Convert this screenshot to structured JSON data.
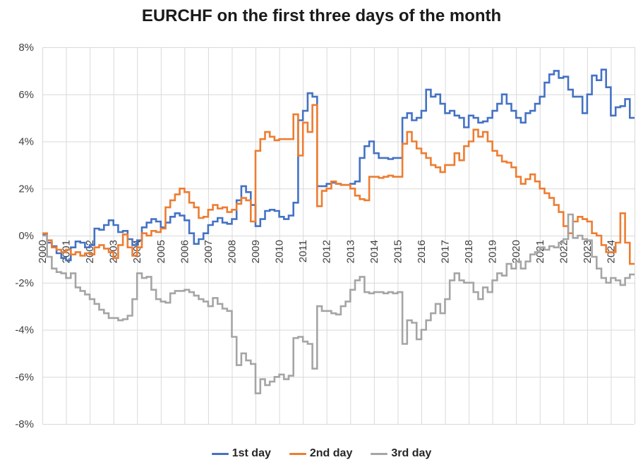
{
  "title": "EURCHF on the first three days of the month",
  "chart_data": {
    "type": "line",
    "title": "EURCHF on the first three days of the month",
    "grid": true,
    "grid_color": "#d9d9d9",
    "tick_label_color": "#404040",
    "background": "#ffffff",
    "y_axis": {
      "unit": "%",
      "min": -8,
      "max": 8,
      "ticks": [
        {
          "value": 8,
          "label": "8%"
        },
        {
          "value": 6,
          "label": "6%"
        },
        {
          "value": 4,
          "label": "4%"
        },
        {
          "value": 2,
          "label": "2%"
        },
        {
          "value": 0,
          "label": "0%"
        },
        {
          "value": -2,
          "label": "-2%"
        },
        {
          "value": -4,
          "label": "-4%"
        },
        {
          "value": -6,
          "label": "-6%"
        },
        {
          "value": -8,
          "label": "-8%"
        }
      ]
    },
    "x_axis": {
      "min": 2000,
      "max": 2025,
      "tick_rotation_deg": -90,
      "years": [
        2000,
        2001,
        2002,
        2003,
        2004,
        2005,
        2006,
        2007,
        2008,
        2009,
        2010,
        2011,
        2012,
        2013,
        2014,
        2015,
        2016,
        2017,
        2018,
        2019,
        2020,
        2021,
        2022,
        2023,
        2024
      ]
    },
    "legend": {
      "position": "bottom",
      "entries": [
        {
          "label": "1st day",
          "color": "#4472C4"
        },
        {
          "label": "2nd day",
          "color": "#ED7D31"
        },
        {
          "label": "3rd day",
          "color": "#A5A5A5"
        }
      ]
    },
    "x_start": 2000.0,
    "x_step": 0.2,
    "series": [
      {
        "name": "1st day",
        "color": "#4472C4",
        "values": [
          0.05,
          -0.3,
          -0.45,
          -0.75,
          -0.95,
          -1.05,
          -0.5,
          -0.25,
          -0.3,
          -0.5,
          -0.4,
          0.3,
          0.25,
          0.45,
          0.65,
          0.45,
          0.15,
          0.2,
          -0.15,
          -0.4,
          -0.2,
          0.35,
          0.55,
          0.7,
          0.6,
          0.35,
          0.55,
          0.8,
          0.95,
          0.85,
          0.65,
          0.1,
          -0.35,
          -0.15,
          0.1,
          0.45,
          0.6,
          0.75,
          0.55,
          0.5,
          0.7,
          1.5,
          2.1,
          1.85,
          1.3,
          0.4,
          0.7,
          1.05,
          1.1,
          1.05,
          0.8,
          0.7,
          0.85,
          1.4,
          4.9,
          5.3,
          6.05,
          5.9,
          2.1,
          2.1,
          2.2,
          2.25,
          2.2,
          2.15,
          2.15,
          2.2,
          2.3,
          3.3,
          3.8,
          4.0,
          3.5,
          3.3,
          3.3,
          3.25,
          3.3,
          3.3,
          5.0,
          5.2,
          4.9,
          5.0,
          5.3,
          6.2,
          5.9,
          6.0,
          5.6,
          5.2,
          5.3,
          5.1,
          5.0,
          4.6,
          5.1,
          5.0,
          4.8,
          4.85,
          5.0,
          5.3,
          5.6,
          6.0,
          5.6,
          5.3,
          5.0,
          4.8,
          5.2,
          5.3,
          5.6,
          5.9,
          6.5,
          6.85,
          7.0,
          6.7,
          6.75,
          6.2,
          5.9,
          5.9,
          5.2,
          6.0,
          6.8,
          6.6,
          7.05,
          6.3,
          5.1,
          5.45,
          5.5,
          5.8,
          5.0
        ]
      },
      {
        "name": "2nd day",
        "color": "#ED7D31",
        "values": [
          0.1,
          -0.2,
          -0.5,
          -0.6,
          -0.7,
          -0.6,
          -0.8,
          -0.7,
          -0.85,
          -0.75,
          -0.8,
          -0.5,
          -0.4,
          -0.55,
          -0.7,
          -0.95,
          -0.4,
          0.05,
          -0.5,
          -0.85,
          -0.5,
          0.1,
          0.0,
          0.2,
          0.15,
          0.3,
          1.2,
          1.5,
          1.75,
          2.0,
          1.85,
          1.4,
          1.2,
          0.75,
          0.8,
          1.1,
          1.3,
          1.15,
          1.2,
          1.0,
          1.1,
          1.35,
          1.6,
          1.5,
          0.6,
          3.6,
          4.1,
          4.4,
          4.2,
          4.05,
          4.1,
          4.1,
          4.1,
          5.15,
          3.4,
          4.8,
          4.4,
          5.55,
          1.25,
          1.9,
          2.0,
          2.3,
          2.2,
          2.15,
          2.15,
          2.0,
          1.7,
          1.55,
          1.5,
          2.5,
          2.5,
          2.45,
          2.5,
          2.55,
          2.5,
          2.5,
          3.9,
          4.4,
          4.0,
          3.7,
          3.5,
          3.3,
          3.0,
          2.9,
          2.7,
          3.0,
          3.0,
          3.5,
          3.2,
          3.8,
          4.0,
          4.5,
          4.2,
          4.4,
          4.0,
          3.6,
          3.4,
          3.15,
          3.1,
          2.9,
          2.5,
          2.2,
          2.4,
          2.6,
          2.3,
          2.0,
          1.8,
          1.6,
          1.3,
          1.0,
          0.4,
          0.1,
          0.6,
          0.8,
          0.7,
          0.6,
          0.1,
          0.0,
          -0.4,
          -0.7,
          -0.7,
          -0.3,
          0.95,
          -0.3,
          -1.2
        ]
      },
      {
        "name": "3rd day",
        "color": "#A5A5A5",
        "values": [
          0.0,
          -0.9,
          -1.4,
          -1.55,
          -1.6,
          -1.8,
          -1.6,
          -2.2,
          -2.35,
          -2.5,
          -2.7,
          -2.9,
          -3.15,
          -3.3,
          -3.5,
          -3.5,
          -3.6,
          -3.55,
          -3.4,
          -2.7,
          -1.6,
          -1.8,
          -1.75,
          -2.3,
          -2.7,
          -2.8,
          -2.85,
          -2.45,
          -2.35,
          -2.35,
          -2.3,
          -2.4,
          -2.55,
          -2.7,
          -2.8,
          -3.0,
          -2.65,
          -2.9,
          -3.1,
          -3.2,
          -4.3,
          -5.5,
          -5.0,
          -5.3,
          -5.45,
          -6.7,
          -6.1,
          -6.35,
          -6.2,
          -6.0,
          -5.9,
          -6.1,
          -5.95,
          -4.35,
          -4.3,
          -4.5,
          -4.6,
          -5.65,
          -3.0,
          -3.2,
          -3.2,
          -3.3,
          -3.35,
          -3.0,
          -2.8,
          -2.3,
          -1.9,
          -1.75,
          -2.4,
          -2.45,
          -2.4,
          -2.4,
          -2.45,
          -2.4,
          -2.45,
          -2.4,
          -4.6,
          -3.6,
          -3.7,
          -4.4,
          -4.0,
          -3.6,
          -3.3,
          -2.9,
          -3.3,
          -2.7,
          -1.9,
          -1.6,
          -1.9,
          -2.0,
          -2.0,
          -2.4,
          -2.7,
          -2.2,
          -2.4,
          -1.9,
          -1.6,
          -1.7,
          -1.2,
          -1.4,
          -1.1,
          -1.4,
          -1.1,
          -0.8,
          -0.7,
          -0.5,
          -0.6,
          -0.45,
          -0.5,
          -0.3,
          -0.15,
          0.9,
          -0.1,
          0.0,
          -0.15,
          -0.2,
          -0.9,
          -1.4,
          -1.8,
          -2.0,
          -1.8,
          -1.9,
          -2.1,
          -1.8,
          -1.65
        ]
      }
    ]
  }
}
